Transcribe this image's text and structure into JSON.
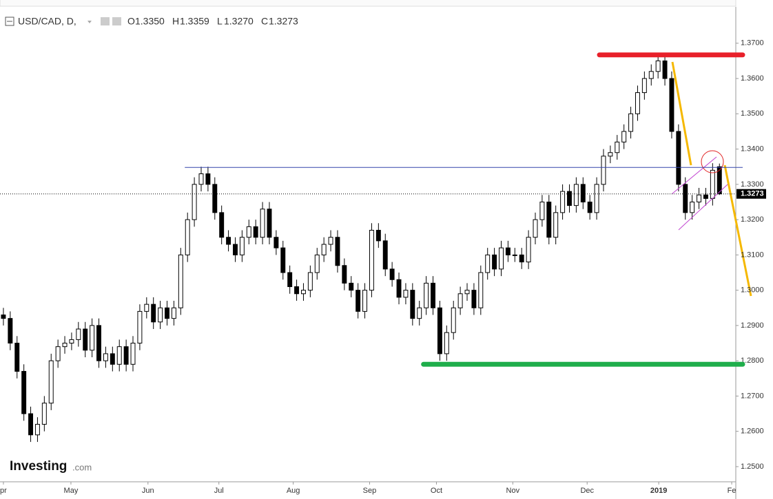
{
  "chart_data": {
    "type": "candlestick",
    "header": {
      "symbol": "USD/CAD, D,",
      "o": "O",
      "h": "H",
      "l": "L",
      "c": "C"
    },
    "ohlc_labels": {
      "open": "1.3350",
      "high": "1.3359",
      "low": "1.3270",
      "close": "1.3273"
    },
    "brand": "Investing",
    "brand_suffix": ".com",
    "up_color": "#ffffff",
    "down_color": "#000000",
    "outline_color": "#000000",
    "xlim": [
      -0.5,
      107.4
    ],
    "xticks": [
      {
        "value": 0,
        "label": "pr"
      },
      {
        "value": 9.9,
        "label": "May"
      },
      {
        "value": 21.2,
        "label": "Jun"
      },
      {
        "value": 31.6,
        "label": "Jul"
      },
      {
        "value": 42.5,
        "label": "Aug"
      },
      {
        "value": 53.7,
        "label": "Sep"
      },
      {
        "value": 63.5,
        "label": "Oct"
      },
      {
        "value": 74.7,
        "label": "Nov"
      },
      {
        "value": 85.6,
        "label": "Dec"
      },
      {
        "value": 96.1,
        "label": "2019",
        "bold": true
      },
      {
        "value": 106.8,
        "label": "Fe"
      }
    ],
    "ylim": [
      1.2457,
      1.3803
    ],
    "yticks": [
      {
        "value": 1.25,
        "label": "1.2500"
      },
      {
        "value": 1.26,
        "label": "1.2600"
      },
      {
        "value": 1.27,
        "label": "1.2700"
      },
      {
        "value": 1.28,
        "label": "1.2800"
      },
      {
        "value": 1.29,
        "label": "1.2900"
      },
      {
        "value": 1.3,
        "label": "1.3000"
      },
      {
        "value": 1.31,
        "label": "1.3100"
      },
      {
        "value": 1.32,
        "label": "1.3200"
      },
      {
        "value": 1.33,
        "label": "1.3300"
      },
      {
        "value": 1.34,
        "label": "1.3400"
      },
      {
        "value": 1.35,
        "label": "1.3500"
      },
      {
        "value": 1.36,
        "label": "1.3600"
      },
      {
        "value": 1.37,
        "label": "1.3700"
      }
    ],
    "levels": [
      {
        "value": 1.3667,
        "start": 87.4,
        "color": "#e8202a",
        "width": 7
      },
      {
        "value": 1.279,
        "start": 61.6,
        "color": "#1fae4b",
        "width": 7
      },
      {
        "value": 1.3348,
        "start": 26.6,
        "color": "#3344aa",
        "width": 1
      }
    ],
    "open": [
      1.293,
      1.292,
      1.285,
      1.277,
      1.265,
      1.259,
      1.262,
      1.268,
      1.28,
      1.284,
      1.285,
      1.286,
      1.289,
      1.283,
      1.29,
      1.28,
      1.282,
      1.279,
      1.284,
      1.279,
      1.285,
      1.294,
      1.296,
      1.291,
      1.295,
      1.292,
      1.295,
      1.31,
      1.32,
      1.33,
      1.333,
      1.33,
      1.322,
      1.315,
      1.313,
      1.31,
      1.315,
      1.318,
      1.315,
      1.323,
      1.315,
      1.312,
      1.305,
      1.301,
      1.299,
      1.3,
      1.305,
      1.31,
      1.313,
      1.315,
      1.307,
      1.302,
      1.3,
      1.294,
      1.3,
      1.317,
      1.314,
      1.306,
      1.303,
      1.298,
      1.3,
      1.292,
      1.295,
      1.302,
      1.295,
      1.282,
      1.288,
      1.295,
      1.299,
      1.3,
      1.295,
      1.305,
      1.31,
      1.306,
      1.312,
      1.31,
      1.31,
      1.308,
      1.315,
      1.32,
      1.325,
      1.315,
      1.322,
      1.328,
      1.324,
      1.33,
      1.325,
      1.322,
      1.33,
      1.338,
      1.339,
      1.342,
      1.345,
      1.35,
      1.356,
      1.36,
      1.362,
      1.365,
      1.36,
      1.345,
      1.33,
      1.322,
      1.325,
      1.327,
      1.326,
      1.335
    ],
    "high": [
      1.295,
      1.294,
      1.287,
      1.279,
      1.267,
      1.264,
      1.27,
      1.282,
      1.286,
      1.287,
      1.288,
      1.291,
      1.291,
      1.292,
      1.292,
      1.284,
      1.284,
      1.286,
      1.286,
      1.287,
      1.296,
      1.298,
      1.298,
      1.297,
      1.297,
      1.297,
      1.312,
      1.322,
      1.332,
      1.335,
      1.335,
      1.332,
      1.324,
      1.317,
      1.315,
      1.317,
      1.32,
      1.32,
      1.325,
      1.325,
      1.317,
      1.314,
      1.307,
      1.303,
      1.302,
      1.307,
      1.312,
      1.315,
      1.317,
      1.317,
      1.309,
      1.304,
      1.302,
      1.302,
      1.319,
      1.319,
      1.316,
      1.308,
      1.305,
      1.302,
      1.302,
      1.297,
      1.304,
      1.304,
      1.297,
      1.29,
      1.297,
      1.301,
      1.302,
      1.302,
      1.307,
      1.312,
      1.312,
      1.314,
      1.314,
      1.312,
      1.312,
      1.317,
      1.322,
      1.327,
      1.327,
      1.324,
      1.33,
      1.33,
      1.332,
      1.332,
      1.327,
      1.332,
      1.34,
      1.341,
      1.344,
      1.347,
      1.352,
      1.358,
      1.362,
      1.364,
      1.367,
      1.367,
      1.362,
      1.347,
      1.332,
      1.327,
      1.329,
      1.329,
      1.336,
      1.3359
    ],
    "low": [
      1.29,
      1.283,
      1.275,
      1.263,
      1.257,
      1.257,
      1.26,
      1.266,
      1.278,
      1.282,
      1.283,
      1.284,
      1.281,
      1.281,
      1.278,
      1.278,
      1.277,
      1.277,
      1.277,
      1.277,
      1.283,
      1.292,
      1.289,
      1.289,
      1.29,
      1.29,
      1.293,
      1.308,
      1.318,
      1.328,
      1.328,
      1.32,
      1.313,
      1.311,
      1.308,
      1.308,
      1.313,
      1.313,
      1.313,
      1.313,
      1.31,
      1.303,
      1.299,
      1.297,
      1.297,
      1.298,
      1.303,
      1.308,
      1.311,
      1.305,
      1.3,
      1.298,
      1.292,
      1.292,
      1.298,
      1.312,
      1.304,
      1.301,
      1.296,
      1.296,
      1.29,
      1.29,
      1.293,
      1.293,
      1.28,
      1.28,
      1.286,
      1.293,
      1.297,
      1.293,
      1.293,
      1.303,
      1.304,
      1.304,
      1.308,
      1.308,
      1.306,
      1.306,
      1.313,
      1.318,
      1.313,
      1.313,
      1.32,
      1.322,
      1.322,
      1.323,
      1.32,
      1.32,
      1.328,
      1.336,
      1.337,
      1.34,
      1.343,
      1.348,
      1.354,
      1.358,
      1.36,
      1.358,
      1.343,
      1.328,
      1.32,
      1.32,
      1.323,
      1.324,
      1.324,
      1.327
    ],
    "close": [
      1.292,
      1.285,
      1.277,
      1.265,
      1.259,
      1.262,
      1.268,
      1.28,
      1.284,
      1.285,
      1.286,
      1.289,
      1.283,
      1.29,
      1.28,
      1.282,
      1.279,
      1.284,
      1.279,
      1.285,
      1.294,
      1.296,
      1.291,
      1.295,
      1.292,
      1.295,
      1.31,
      1.32,
      1.33,
      1.333,
      1.33,
      1.322,
      1.315,
      1.313,
      1.31,
      1.315,
      1.318,
      1.315,
      1.323,
      1.315,
      1.312,
      1.305,
      1.301,
      1.299,
      1.3,
      1.305,
      1.31,
      1.313,
      1.315,
      1.307,
      1.302,
      1.3,
      1.294,
      1.3,
      1.317,
      1.314,
      1.306,
      1.303,
      1.298,
      1.3,
      1.292,
      1.295,
      1.302,
      1.295,
      1.282,
      1.288,
      1.295,
      1.299,
      1.3,
      1.295,
      1.305,
      1.31,
      1.306,
      1.312,
      1.31,
      1.31,
      1.308,
      1.315,
      1.32,
      1.325,
      1.315,
      1.322,
      1.328,
      1.324,
      1.33,
      1.325,
      1.322,
      1.33,
      1.338,
      1.339,
      1.342,
      1.345,
      1.35,
      1.356,
      1.36,
      1.362,
      1.365,
      1.36,
      1.345,
      1.33,
      1.322,
      1.325,
      1.327,
      1.326,
      1.334,
      1.3273
    ]
  }
}
